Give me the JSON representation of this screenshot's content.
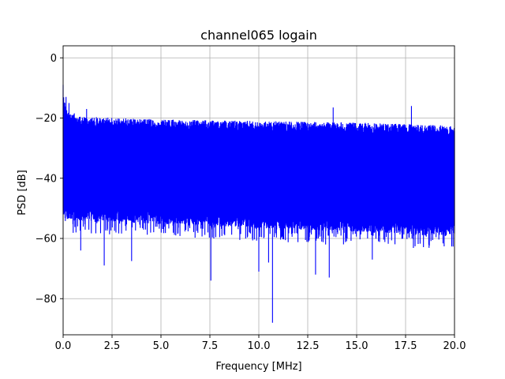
{
  "chart_data": {
    "type": "line",
    "title": "channel065 logain",
    "xlabel": "Frequency [MHz]",
    "ylabel": "PSD [dB]",
    "xlim": [
      0,
      20
    ],
    "ylim": [
      -92,
      4
    ],
    "grid": true,
    "x_ticks": [
      0,
      2.5,
      5,
      7.5,
      10,
      12.5,
      15,
      17.5,
      20
    ],
    "x_tick_labels": [
      "0.0",
      "2.5",
      "5.0",
      "7.5",
      "10.0",
      "12.5",
      "15.0",
      "17.5",
      "20.0"
    ],
    "y_ticks": [
      0,
      -20,
      -40,
      -60,
      -80
    ],
    "y_tick_labels": [
      "0",
      "−20",
      "−40",
      "−60",
      "−80"
    ],
    "series": [
      {
        "color": "#0000ff",
        "band": {
          "top": [
            [
              0,
              -9
            ],
            [
              0.1,
              -14
            ],
            [
              0.25,
              -16
            ],
            [
              1,
              -18
            ],
            [
              5,
              -19
            ],
            [
              10,
              -19.5
            ],
            [
              15,
              -20
            ],
            [
              20,
              -21
            ]
          ],
          "lower_typical": [
            [
              0,
              -52
            ],
            [
              20,
              -57
            ]
          ],
          "dip_floor": [
            [
              0,
              -58
            ],
            [
              20,
              -64
            ]
          ]
        },
        "notable_dips": [
          [
            0.9,
            -64
          ],
          [
            2.1,
            -69
          ],
          [
            3.5,
            -67.5
          ],
          [
            7.55,
            -74
          ],
          [
            10.0,
            -71
          ],
          [
            10.5,
            -68
          ],
          [
            10.7,
            -88
          ],
          [
            12.9,
            -72
          ],
          [
            13.6,
            -73
          ],
          [
            15.8,
            -67
          ]
        ],
        "notable_peaks": [
          [
            0.0,
            -9
          ],
          [
            0.15,
            -13
          ],
          [
            0.3,
            -15
          ],
          [
            1.2,
            -17
          ],
          [
            13.8,
            -16.5
          ],
          [
            17.8,
            -16
          ]
        ]
      }
    ]
  }
}
